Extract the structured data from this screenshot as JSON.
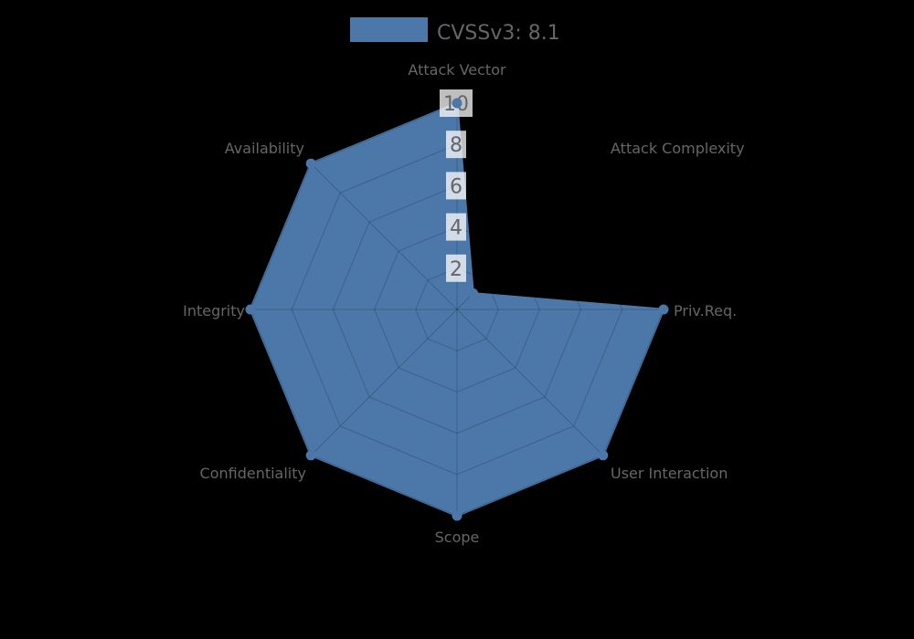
{
  "chart_data": {
    "type": "radar",
    "title": "",
    "legend": {
      "label": "CVSSv3: 8.1",
      "position": "top"
    },
    "categories": [
      "Attack Vector",
      "Attack Complexity",
      "Priv.Req.",
      "User Interaction",
      "Scope",
      "Confidentiality",
      "Integrity",
      "Availability"
    ],
    "series": [
      {
        "name": "CVSSv3: 8.1",
        "values": [
          10,
          1.1,
          10,
          10,
          10,
          10,
          10,
          10
        ]
      }
    ],
    "scale": {
      "min": 0,
      "max": 10,
      "tick_values": [
        2,
        4,
        6,
        8,
        10
      ],
      "tick_labels": [
        "2",
        "4",
        "6",
        "8",
        "10"
      ]
    },
    "grid": {
      "shape": "polygon-web",
      "rings": 5,
      "spokes": 8
    },
    "colors": {
      "series_fill": "#4b78a8",
      "series_border": "#4b78a8",
      "grid_line": "rgba(0,0,0,0.16)",
      "tick_backdrop": "rgba(255,255,255,0.75)",
      "text": "#666666",
      "background": "#000000"
    }
  }
}
